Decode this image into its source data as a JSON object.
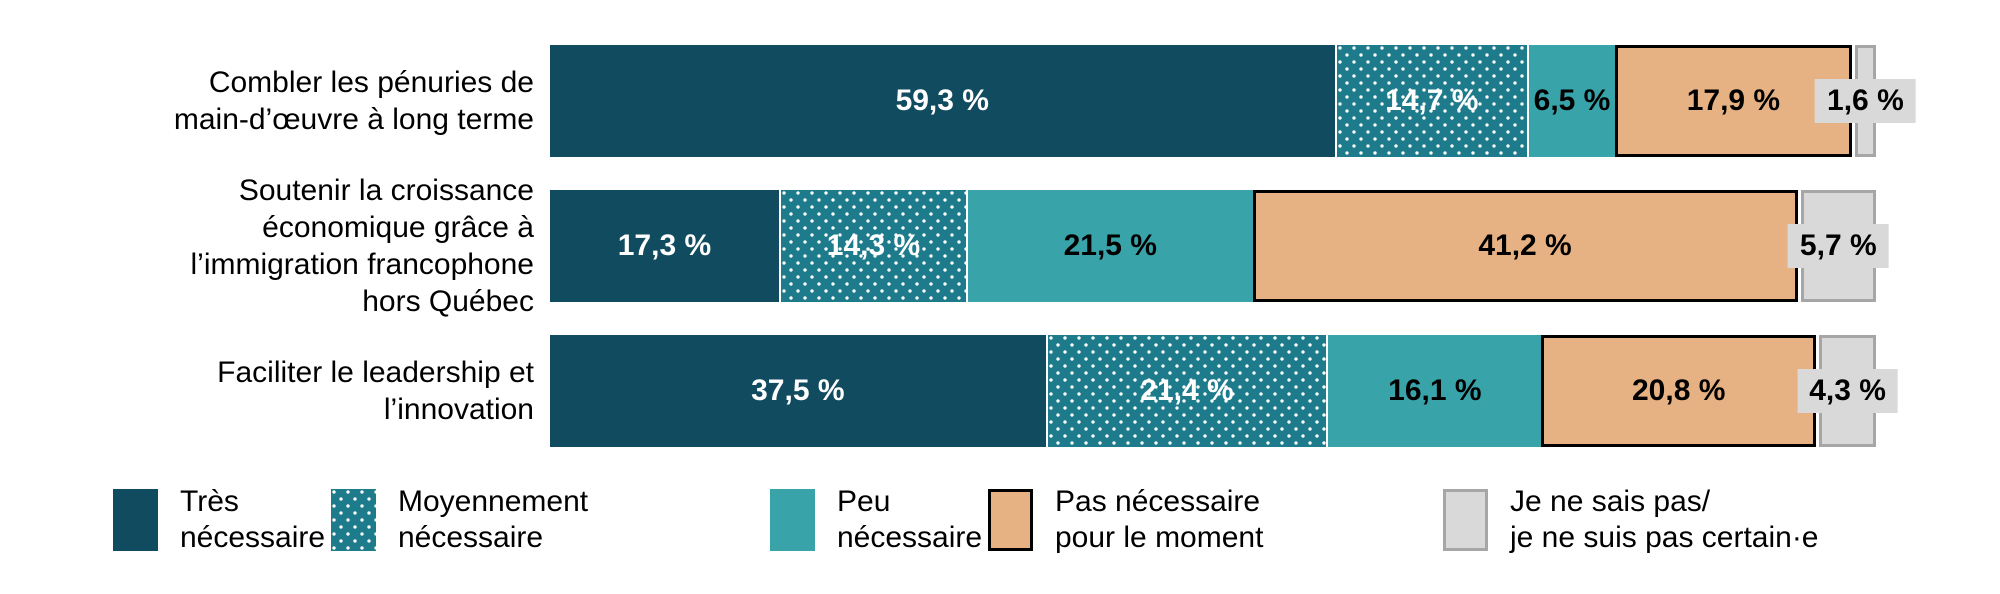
{
  "chart_data": {
    "type": "bar",
    "orientation": "horizontal",
    "stacked": true,
    "unit": "%",
    "xlim": [
      0,
      100
    ],
    "grid": false,
    "legend_position": "bottom",
    "title": "",
    "categories": [
      "Combler les pénuries de main-d’œuvre à long terme",
      "Soutenir la croissance économique grâce à l’immigration francophone hors Québec",
      "Faciliter le leadership et l’innovation"
    ],
    "series": [
      {
        "name": "Très nécessaire",
        "color": "#114b5f",
        "pattern": "solid",
        "values": [
          59.3,
          17.3,
          37.5
        ]
      },
      {
        "name": "Moyennement nécessaire",
        "color": "#1e7b8c",
        "pattern": "white-dots",
        "values": [
          14.7,
          14.3,
          21.4
        ]
      },
      {
        "name": "Peu nécessaire",
        "color": "#38a3a9",
        "pattern": "solid",
        "values": [
          6.5,
          21.5,
          16.1
        ]
      },
      {
        "name": "Pas nécessaire pour le moment",
        "color": "#e7b283",
        "border_color": "#000000",
        "pattern": "solid",
        "values": [
          17.9,
          41.2,
          20.8
        ]
      },
      {
        "name": "Je ne sais pas/je ne suis pas certain·e",
        "color": "#d9d9d9",
        "border_color": "#a6a6a6",
        "pattern": "solid",
        "values": [
          1.6,
          5.7,
          4.3
        ]
      }
    ],
    "rows": [
      {
        "category": "Combler les pénuries de main-d’œuvre à long terme",
        "segments": [
          {
            "value": 59.3,
            "label": "59,3 %"
          },
          {
            "value": 14.7,
            "label": "14,7 %"
          },
          {
            "value": 6.5,
            "label": "6,5 %"
          },
          {
            "value": 17.9,
            "label": "17,9 %"
          },
          {
            "value": 1.6,
            "label": "1,6 %"
          }
        ]
      },
      {
        "category": "Soutenir la croissance économique grâce à l’immigration francophone hors Québec",
        "segments": [
          {
            "value": 17.3,
            "label": "17,3 %"
          },
          {
            "value": 14.3,
            "label": "14,3 %"
          },
          {
            "value": 21.5,
            "label": "21,5 %"
          },
          {
            "value": 41.2,
            "label": "41,2 %"
          },
          {
            "value": 5.7,
            "label": "5,7 %"
          }
        ]
      },
      {
        "category": "Faciliter le leadership et l’innovation",
        "segments": [
          {
            "value": 37.5,
            "label": "37,5 %"
          },
          {
            "value": 21.4,
            "label": "21,4 %"
          },
          {
            "value": 16.1,
            "label": "16,1 %"
          },
          {
            "value": 20.8,
            "label": "20,8 %"
          },
          {
            "value": 4.3,
            "label": "4,3 %"
          }
        ]
      }
    ]
  },
  "legend": {
    "items": [
      {
        "line1": "Très",
        "line2": "nécessaire"
      },
      {
        "line1": "Moyennement",
        "line2": "nécessaire"
      },
      {
        "line1": "Peu",
        "line2": "nécessaire"
      },
      {
        "line1": "Pas nécessaire",
        "line2": "pour le moment"
      },
      {
        "line1": "Je ne sais pas/",
        "line2": "je ne suis pas certain·e"
      }
    ]
  },
  "colors": {
    "tres_necessaire": "#114b5f",
    "moyennement_necessaire": "#1e7b8c",
    "peu_necessaire": "#38a3a9",
    "pas_necessaire": "#e7b283",
    "pas_necessaire_border": "#000000",
    "je_ne_sais_pas": "#d9d9d9",
    "je_ne_sais_pas_border": "#a6a6a6",
    "text": "#000000",
    "text_on_dark": "#ffffff"
  }
}
